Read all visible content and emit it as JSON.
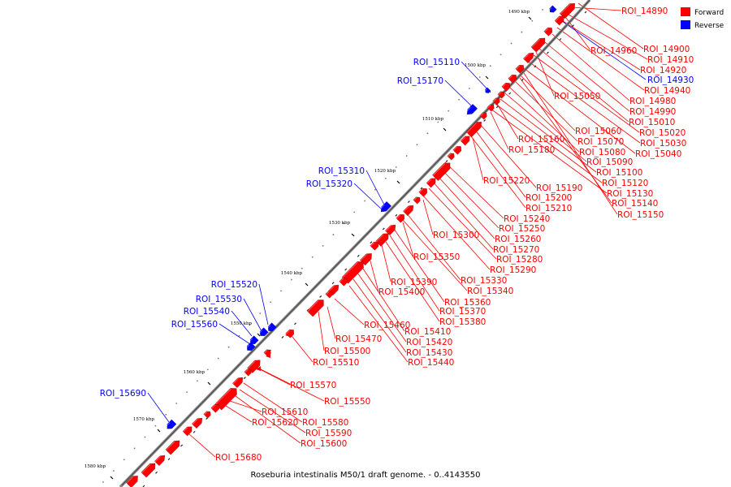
{
  "caption": "Roseburia intestinalis M50/1 draft genome. - 0..4143550",
  "legend": [
    {
      "label": "Forward",
      "color": "#ff0000"
    },
    {
      "label": "Reverse",
      "color": "#0000ff"
    }
  ],
  "ticks": [
    "1490 kbp",
    "1500 kbp",
    "1510 kbp",
    "1520 kbp",
    "1530 kbp",
    "1540 kbp",
    "1550 kbp",
    "1560 kbp",
    "1570 kbp",
    "1580 kbp"
  ],
  "forward_labels": [
    "ROI_14890",
    "ROI_14900",
    "ROI_14910",
    "ROI_14920",
    "ROI_14940",
    "ROI_14960",
    "ROI_14980",
    "ROI_14990",
    "ROI_15010",
    "ROI_15020",
    "ROI_15030",
    "ROI_15040",
    "ROI_15050",
    "ROI_15060",
    "ROI_15070",
    "ROI_15080",
    "ROI_15090",
    "ROI_15100",
    "ROI_15120",
    "ROI_15130",
    "ROI_15140",
    "ROI_15150",
    "ROI_15160",
    "ROI_15180",
    "ROI_15190",
    "ROI_15200",
    "ROI_15210",
    "ROI_15220",
    "ROI_15240",
    "ROI_15250",
    "ROI_15260",
    "ROI_15270",
    "ROI_15280",
    "ROI_15290",
    "ROI_15300",
    "ROI_15330",
    "ROI_15340",
    "ROI_15350",
    "ROI_15360",
    "ROI_15370",
    "ROI_15380",
    "ROI_15390",
    "ROI_15400",
    "ROI_15410",
    "ROI_15420",
    "ROI_15430",
    "ROI_15440",
    "ROI_15460",
    "ROI_15470",
    "ROI_15500",
    "ROI_15510",
    "ROI_15550",
    "ROI_15570",
    "ROI_15580",
    "ROI_15590",
    "ROI_15600",
    "ROI_15610",
    "ROI_15620",
    "ROI_15680"
  ],
  "reverse_labels": [
    "ROI_14930",
    "ROI_15110",
    "ROI_15170",
    "ROI_15310",
    "ROI_15320",
    "ROI_15520",
    "ROI_15530",
    "ROI_15540",
    "ROI_15560",
    "ROI_15690"
  ]
}
